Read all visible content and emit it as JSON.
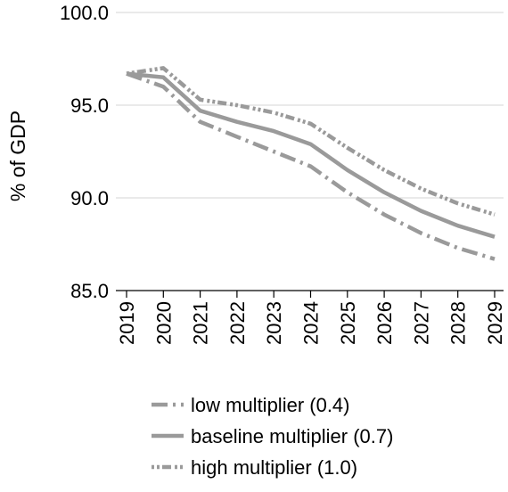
{
  "chart_data": {
    "type": "line",
    "title": "",
    "xlabel": "",
    "ylabel": "% of GDP",
    "x": [
      "2019",
      "2020",
      "2021",
      "2022",
      "2023",
      "2024",
      "2025",
      "2026",
      "2027",
      "2028",
      "2029"
    ],
    "ylim": [
      85.0,
      100.0
    ],
    "yticks": [
      "85.0",
      "90.0",
      "95.0",
      "100.0"
    ],
    "grid": "horizontal",
    "legend": "bottom",
    "series": [
      {
        "name": "low multiplier (0.4)",
        "style": "dashdot",
        "color": "#9a9a9a",
        "values": [
          96.7,
          96.0,
          94.1,
          93.3,
          92.5,
          91.7,
          90.3,
          89.1,
          88.1,
          87.3,
          86.7
        ]
      },
      {
        "name": "baseline multiplier (0.7)",
        "style": "solid",
        "color": "#9a9a9a",
        "values": [
          96.7,
          96.5,
          94.7,
          94.1,
          93.6,
          92.9,
          91.5,
          90.3,
          89.3,
          88.5,
          87.9
        ]
      },
      {
        "name": "high multiplier (1.0)",
        "style": "dotted",
        "color": "#9a9a9a",
        "values": [
          96.7,
          97.0,
          95.3,
          95.0,
          94.6,
          94.0,
          92.7,
          91.5,
          90.5,
          89.7,
          89.1
        ]
      }
    ]
  }
}
